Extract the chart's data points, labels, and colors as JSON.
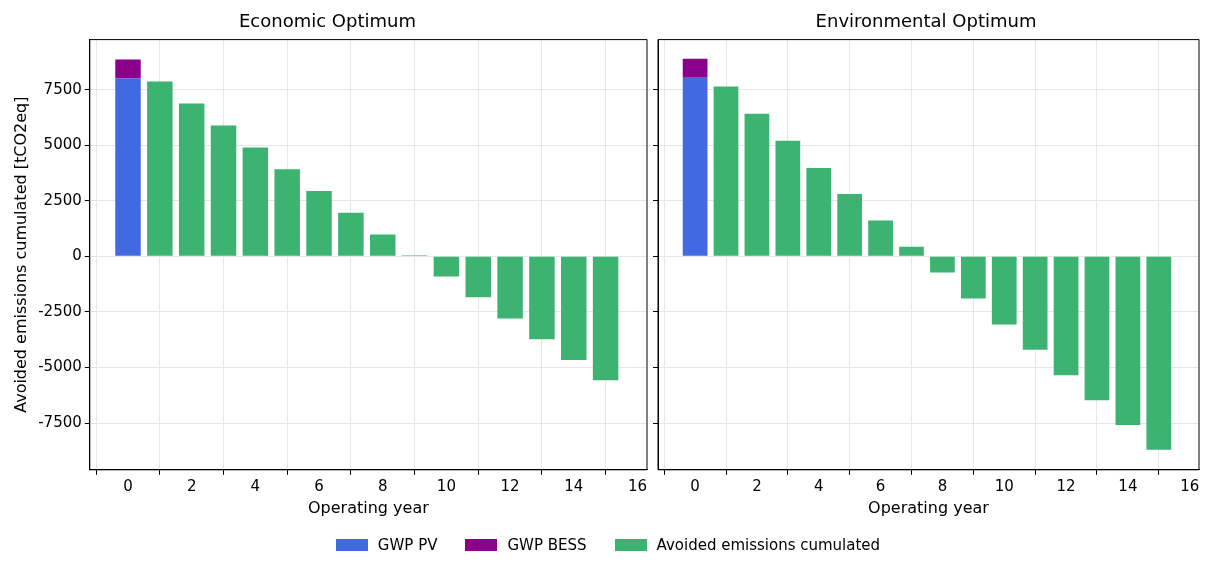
{
  "chart_data": [
    {
      "type": "bar",
      "title": "Economic Optimum",
      "xlabel": "Operating year",
      "ylabel": "Avoided emissions cumulated [tCO2eq]",
      "stacked": true,
      "grid": true,
      "legend": "bottom",
      "xlim": [
        -1.2,
        16.3
      ],
      "xticks": [
        0,
        2,
        4,
        6,
        8,
        10,
        12,
        14,
        16
      ],
      "ylim": [
        -9600,
        9750
      ],
      "yticks": [
        -7500,
        -5000,
        -2500,
        0,
        2500,
        5000,
        7500
      ],
      "x": [
        0,
        1,
        2,
        3,
        4,
        5,
        6,
        7,
        8,
        9,
        10,
        11,
        12,
        13,
        14,
        15
      ],
      "series": [
        {
          "name": "GWP PV",
          "color": "#4169e1",
          "values": [
            8000,
            null,
            null,
            null,
            null,
            null,
            null,
            null,
            null,
            null,
            null,
            null,
            null,
            null,
            null,
            null
          ]
        },
        {
          "name": "GWP BESS",
          "color": "#8b008b",
          "values": [
            850,
            null,
            null,
            null,
            null,
            null,
            null,
            null,
            null,
            null,
            null,
            null,
            null,
            null,
            null,
            null
          ]
        },
        {
          "name": "Avoided emissions cumulated",
          "color": "#3cb371",
          "values": [
            null,
            7870,
            6880,
            5890,
            4900,
            3920,
            2940,
            1960,
            980,
            50,
            -910,
            -1840,
            -2790,
            -3730,
            -4660,
            -5570
          ]
        }
      ]
    },
    {
      "type": "bar",
      "title": "Environmental Optimum",
      "xlabel": "Operating year",
      "stacked": true,
      "grid": true,
      "tick_labels": "x",
      "xlim": [
        -1.2,
        16.3
      ],
      "xticks": [
        0,
        2,
        4,
        6,
        8,
        10,
        12,
        14,
        16
      ],
      "ylim": [
        -9600,
        9750
      ],
      "yticks": [
        -7500,
        -5000,
        -2500,
        0,
        2500,
        5000,
        7500
      ],
      "x": [
        0,
        1,
        2,
        3,
        4,
        5,
        6,
        7,
        8,
        9,
        10,
        11,
        12,
        13,
        14,
        15
      ],
      "series": [
        {
          "color": "#4169e1",
          "values": [
            8030,
            null,
            null,
            null,
            null,
            null,
            null,
            null,
            null,
            null,
            null,
            null,
            null,
            null,
            null,
            null
          ]
        },
        {
          "color": "#8b008b",
          "values": [
            860,
            null,
            null,
            null,
            null,
            null,
            null,
            null,
            null,
            null,
            null,
            null,
            null,
            null,
            null,
            null
          ]
        },
        {
          "color": "#3cb371",
          "values": [
            null,
            7640,
            6420,
            5200,
            3980,
            2800,
            1610,
            430,
            -730,
            -1890,
            -3070,
            -4200,
            -5350,
            -6470,
            -7590,
            -8700
          ]
        }
      ]
    }
  ]
}
